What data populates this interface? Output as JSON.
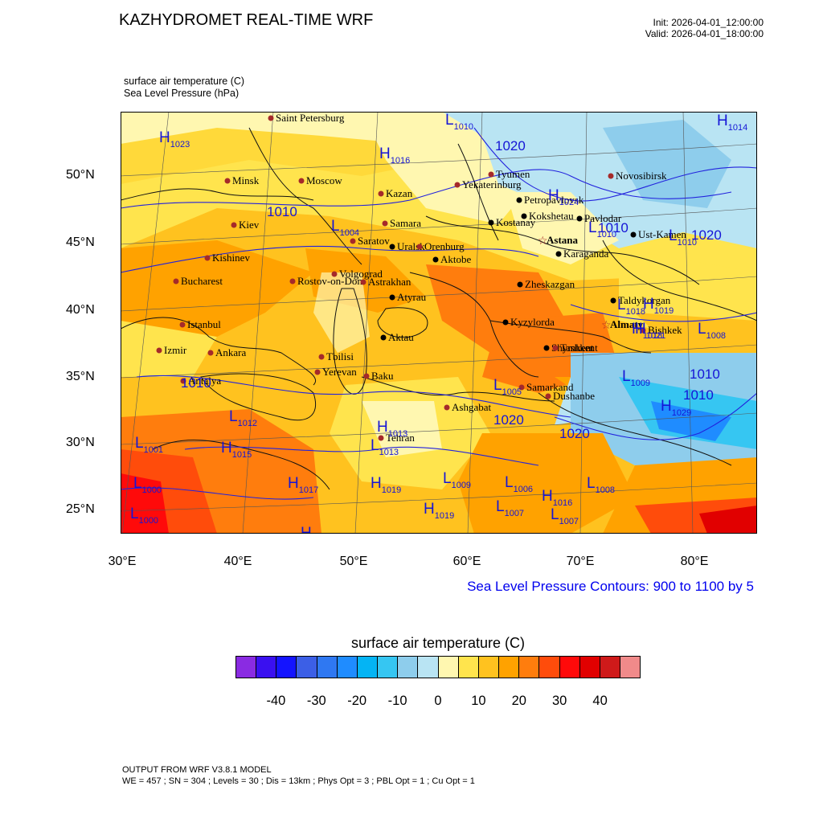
{
  "header": {
    "title": "KAZHYDROMET REAL-TIME WRF",
    "init": "Init: 2026-04-01_12:00:00",
    "valid": "Valid: 2026-04-01_18:00:00",
    "field1": "surface air temperature   (C)",
    "field2": "Sea Level Pressure   (hPa)"
  },
  "axes": {
    "lat_labels": [
      "50°N",
      "45°N",
      "40°N",
      "35°N",
      "30°N",
      "25°N"
    ],
    "lon_labels": [
      "30°E",
      "40°E",
      "50°E",
      "60°E",
      "70°E",
      "80°E"
    ]
  },
  "map": {
    "slp_note": "Sea Level Pressure Contours: 900 to 1100 by 5",
    "cities": [
      {
        "name": "Saint Petersburg",
        "kind": "capital"
      },
      {
        "name": "Minsk",
        "kind": "capital"
      },
      {
        "name": "Moscow",
        "kind": "capital"
      },
      {
        "name": "Kazan",
        "kind": "capital"
      },
      {
        "name": "Yekaterinburg",
        "kind": "capital"
      },
      {
        "name": "Tyumen",
        "kind": "capital"
      },
      {
        "name": "Novosibirsk",
        "kind": "capital"
      },
      {
        "name": "Petropavlovsk",
        "kind": "kz"
      },
      {
        "name": "Kokshetau",
        "kind": "kz"
      },
      {
        "name": "Pavlodar",
        "kind": "kz"
      },
      {
        "name": "Kostanay",
        "kind": "kz"
      },
      {
        "name": "Kiev",
        "kind": "capital"
      },
      {
        "name": "Samara",
        "kind": "capital"
      },
      {
        "name": "Saratov",
        "kind": "capital"
      },
      {
        "name": "Uralsk",
        "kind": "kz"
      },
      {
        "name": "Orenburg",
        "kind": "capital"
      },
      {
        "name": "Aktobe",
        "kind": "kz"
      },
      {
        "name": "Astana",
        "kind": "star"
      },
      {
        "name": "Ust-Kamen",
        "kind": "kz"
      },
      {
        "name": "Karaganda",
        "kind": "kz"
      },
      {
        "name": "Kishinev",
        "kind": "capital"
      },
      {
        "name": "Bucharest",
        "kind": "capital"
      },
      {
        "name": "Rostov-on-Don",
        "kind": "capital"
      },
      {
        "name": "Volgograd",
        "kind": "capital"
      },
      {
        "name": "Astrakhan",
        "kind": "capital"
      },
      {
        "name": "Zheskazgan",
        "kind": "kz"
      },
      {
        "name": "Atyrau",
        "kind": "kz"
      },
      {
        "name": "Taldykorgan",
        "kind": "kz"
      },
      {
        "name": "Istanbul",
        "kind": "capital"
      },
      {
        "name": "Kyzylorda",
        "kind": "kz"
      },
      {
        "name": "Almaty",
        "kind": "star"
      },
      {
        "name": "Bishkek",
        "kind": "capital"
      },
      {
        "name": "Aktau",
        "kind": "kz"
      },
      {
        "name": "Shymkent",
        "kind": "kz"
      },
      {
        "name": "Tashkent",
        "kind": "capital"
      },
      {
        "name": "Izmir",
        "kind": "capital"
      },
      {
        "name": "Ankara",
        "kind": "capital"
      },
      {
        "name": "Tbilisi",
        "kind": "capital"
      },
      {
        "name": "Yerevan",
        "kind": "capital"
      },
      {
        "name": "Baku",
        "kind": "capital"
      },
      {
        "name": "Samarkand",
        "kind": "capital"
      },
      {
        "name": "Dushanbe",
        "kind": "capital"
      },
      {
        "name": "Antalya",
        "kind": "capital"
      },
      {
        "name": "Ashgabat",
        "kind": "capital"
      },
      {
        "name": "Tehran",
        "kind": "capital"
      }
    ],
    "pressure_centers": [
      {
        "kind": "L",
        "value": "1010"
      },
      {
        "kind": "H",
        "value": "1014"
      },
      {
        "kind": "H",
        "value": "1023"
      },
      {
        "kind": "H",
        "value": "1016"
      },
      {
        "kind": "L",
        "value": "1004"
      },
      {
        "kind": "H",
        "value": "1024"
      },
      {
        "kind": "L",
        "value": "1010"
      },
      {
        "kind": "L",
        "value": "1010"
      },
      {
        "kind": "L",
        "value": "1018"
      },
      {
        "kind": "H",
        "value": "1019"
      },
      {
        "kind": "H",
        "value": "1018"
      },
      {
        "kind": "L",
        "value": "1005"
      },
      {
        "kind": "H",
        "value": "1021"
      },
      {
        "kind": "L",
        "value": "1008"
      },
      {
        "kind": "L",
        "value": "1009"
      },
      {
        "kind": "H",
        "value": "1029"
      },
      {
        "kind": "L",
        "value": "1012"
      },
      {
        "kind": "L",
        "value": "1001"
      },
      {
        "kind": "H",
        "value": "1015"
      },
      {
        "kind": "H",
        "value": "1017"
      },
      {
        "kind": "H",
        "value": "1019"
      },
      {
        "kind": "L",
        "value": "1009"
      },
      {
        "kind": "L",
        "value": "1006"
      },
      {
        "kind": "H",
        "value": "1016"
      },
      {
        "kind": "L",
        "value": "1008"
      },
      {
        "kind": "H",
        "value": "1013"
      },
      {
        "kind": "L",
        "value": "1013"
      },
      {
        "kind": "H",
        "value": "1019"
      },
      {
        "kind": "L",
        "value": "1007"
      },
      {
        "kind": "L",
        "value": "1007"
      },
      {
        "kind": "L",
        "value": "1000"
      },
      {
        "kind": "L",
        "value": "1000"
      },
      {
        "kind": "H",
        "value": ""
      }
    ],
    "isobar_labels": [
      "1020",
      "1010",
      "1010",
      "1020",
      "1010",
      "1010",
      "1020",
      "1010",
      "1020"
    ]
  },
  "colorbar": {
    "title": "surface air temperature  (C)",
    "colors": [
      "#8a2be2",
      "#3a10f0",
      "#1414ff",
      "#3c5fe6",
      "#2f78f2",
      "#1f8cff",
      "#04b4f4",
      "#36c6f2",
      "#8ecdec",
      "#b9e4f3",
      "#fff7b0",
      "#ffe44d",
      "#ffc21f",
      "#ffa200",
      "#ff7d0d",
      "#ff4c0b",
      "#ff0a0a",
      "#e10000",
      "#cf1a1a",
      "#f08a8a"
    ],
    "labels": [
      "-40",
      "-30",
      "-20",
      "-10",
      "0",
      "10",
      "20",
      "30",
      "40"
    ]
  },
  "footer": {
    "line1": "OUTPUT FROM WRF V3.8.1 MODEL",
    "line2": "WE = 457 ; SN = 304 ; Levels = 30 ; Dis = 13km ; Phys Opt = 3 ; PBL Opt = 1 ; Cu Opt = 1"
  }
}
